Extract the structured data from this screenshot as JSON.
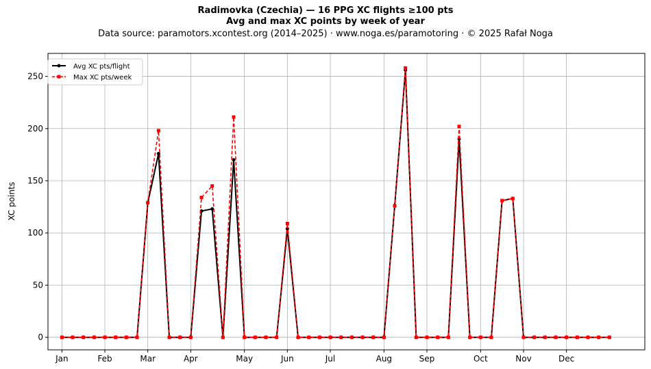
{
  "chart_data": {
    "type": "line",
    "title": "Radimovka (Czechia)  —  16 PPG XC flights ≥100 pts",
    "subtitle": "Avg and max XC points by week of year",
    "source_note": "Data source: paramotors.xcontest.org (2014–2025)  ·  www.noga.es/paramotoring  ·  © 2025 Rafał Noga",
    "ylabel": "XC points",
    "xlabel": "",
    "xlim": [
      -1.3,
      54.3
    ],
    "ylim": [
      -12,
      272
    ],
    "yticks": [
      0,
      50,
      100,
      150,
      200,
      250
    ],
    "xticks": [
      {
        "label": "Jan",
        "week": 0
      },
      {
        "label": "Feb",
        "week": 4
      },
      {
        "label": "Mar",
        "week": 8
      },
      {
        "label": "Apr",
        "week": 12
      },
      {
        "label": "May",
        "week": 17
      },
      {
        "label": "Jun",
        "week": 21
      },
      {
        "label": "Jul",
        "week": 25
      },
      {
        "label": "Aug",
        "week": 30
      },
      {
        "label": "Sep",
        "week": 34
      },
      {
        "label": "Oct",
        "week": 39
      },
      {
        "label": "Nov",
        "week": 43
      },
      {
        "label": "Dec",
        "week": 47
      }
    ],
    "grid": true,
    "legend_position": "top-left",
    "x": [
      0,
      1,
      2,
      3,
      4,
      5,
      6,
      7,
      8,
      9,
      10,
      11,
      12,
      13,
      14,
      15,
      16,
      17,
      18,
      19,
      20,
      21,
      22,
      23,
      24,
      25,
      26,
      27,
      28,
      29,
      30,
      31,
      32,
      33,
      34,
      35,
      36,
      37,
      38,
      39,
      40,
      41,
      42,
      43,
      44,
      45,
      46,
      47,
      48,
      49,
      50,
      51
    ],
    "series": [
      {
        "name": "Avg XC pts/flight",
        "color": "#000000",
        "style": "solid-circle",
        "values": [
          0,
          0,
          0,
          0,
          0,
          0,
          0,
          0,
          129,
          176,
          0,
          0,
          0,
          121,
          123,
          0,
          170,
          0,
          0,
          0,
          0,
          104,
          0,
          0,
          0,
          0,
          0,
          0,
          0,
          0,
          0,
          126,
          256,
          0,
          0,
          0,
          0,
          190,
          0,
          0,
          0,
          131,
          133,
          0,
          0,
          0,
          0,
          0,
          0,
          0,
          0,
          0
        ]
      },
      {
        "name": "Max XC pts/week",
        "color": "#ff0000",
        "style": "dashed-square",
        "values": [
          0,
          0,
          0,
          0,
          0,
          0,
          0,
          0,
          129,
          198,
          0,
          0,
          0,
          134,
          145,
          0,
          211,
          0,
          0,
          0,
          0,
          109,
          0,
          0,
          0,
          0,
          0,
          0,
          0,
          0,
          0,
          126,
          258,
          0,
          0,
          0,
          0,
          202,
          0,
          0,
          0,
          131,
          133,
          0,
          0,
          0,
          0,
          0,
          0,
          0,
          0,
          0
        ]
      }
    ]
  }
}
